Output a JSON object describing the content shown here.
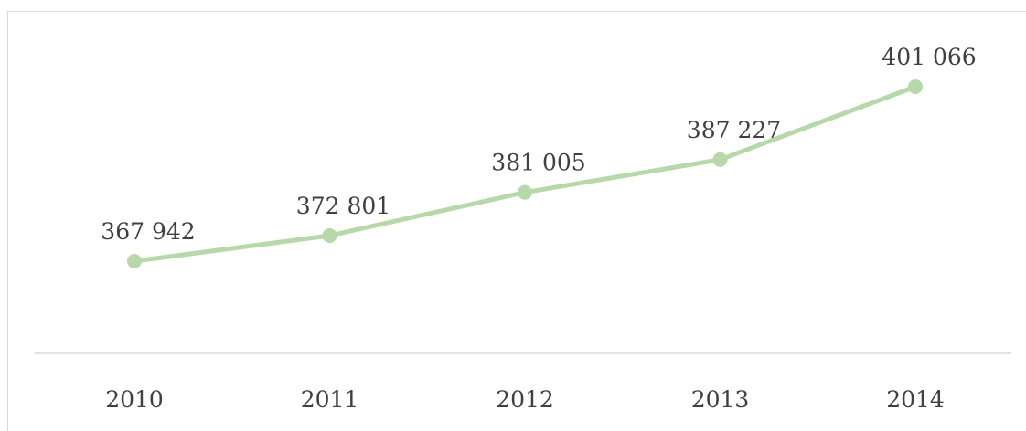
{
  "chart_data": {
    "type": "line",
    "categories": [
      "2010",
      "2011",
      "2012",
      "2013",
      "2014"
    ],
    "values": [
      367942,
      372801,
      381005,
      387227,
      401066
    ],
    "data_labels": [
      "367 942",
      "372 801",
      "381 005",
      "387 227",
      "401 066"
    ],
    "title": "",
    "xlabel": "",
    "ylabel": "",
    "ylim": [
      340000,
      405000
    ],
    "grid": false,
    "legend": "none",
    "line_color": "#b7d8a9",
    "marker_color": "#b7d8a9",
    "axis_color": "#d9d9d9",
    "text_color": "#404040"
  }
}
